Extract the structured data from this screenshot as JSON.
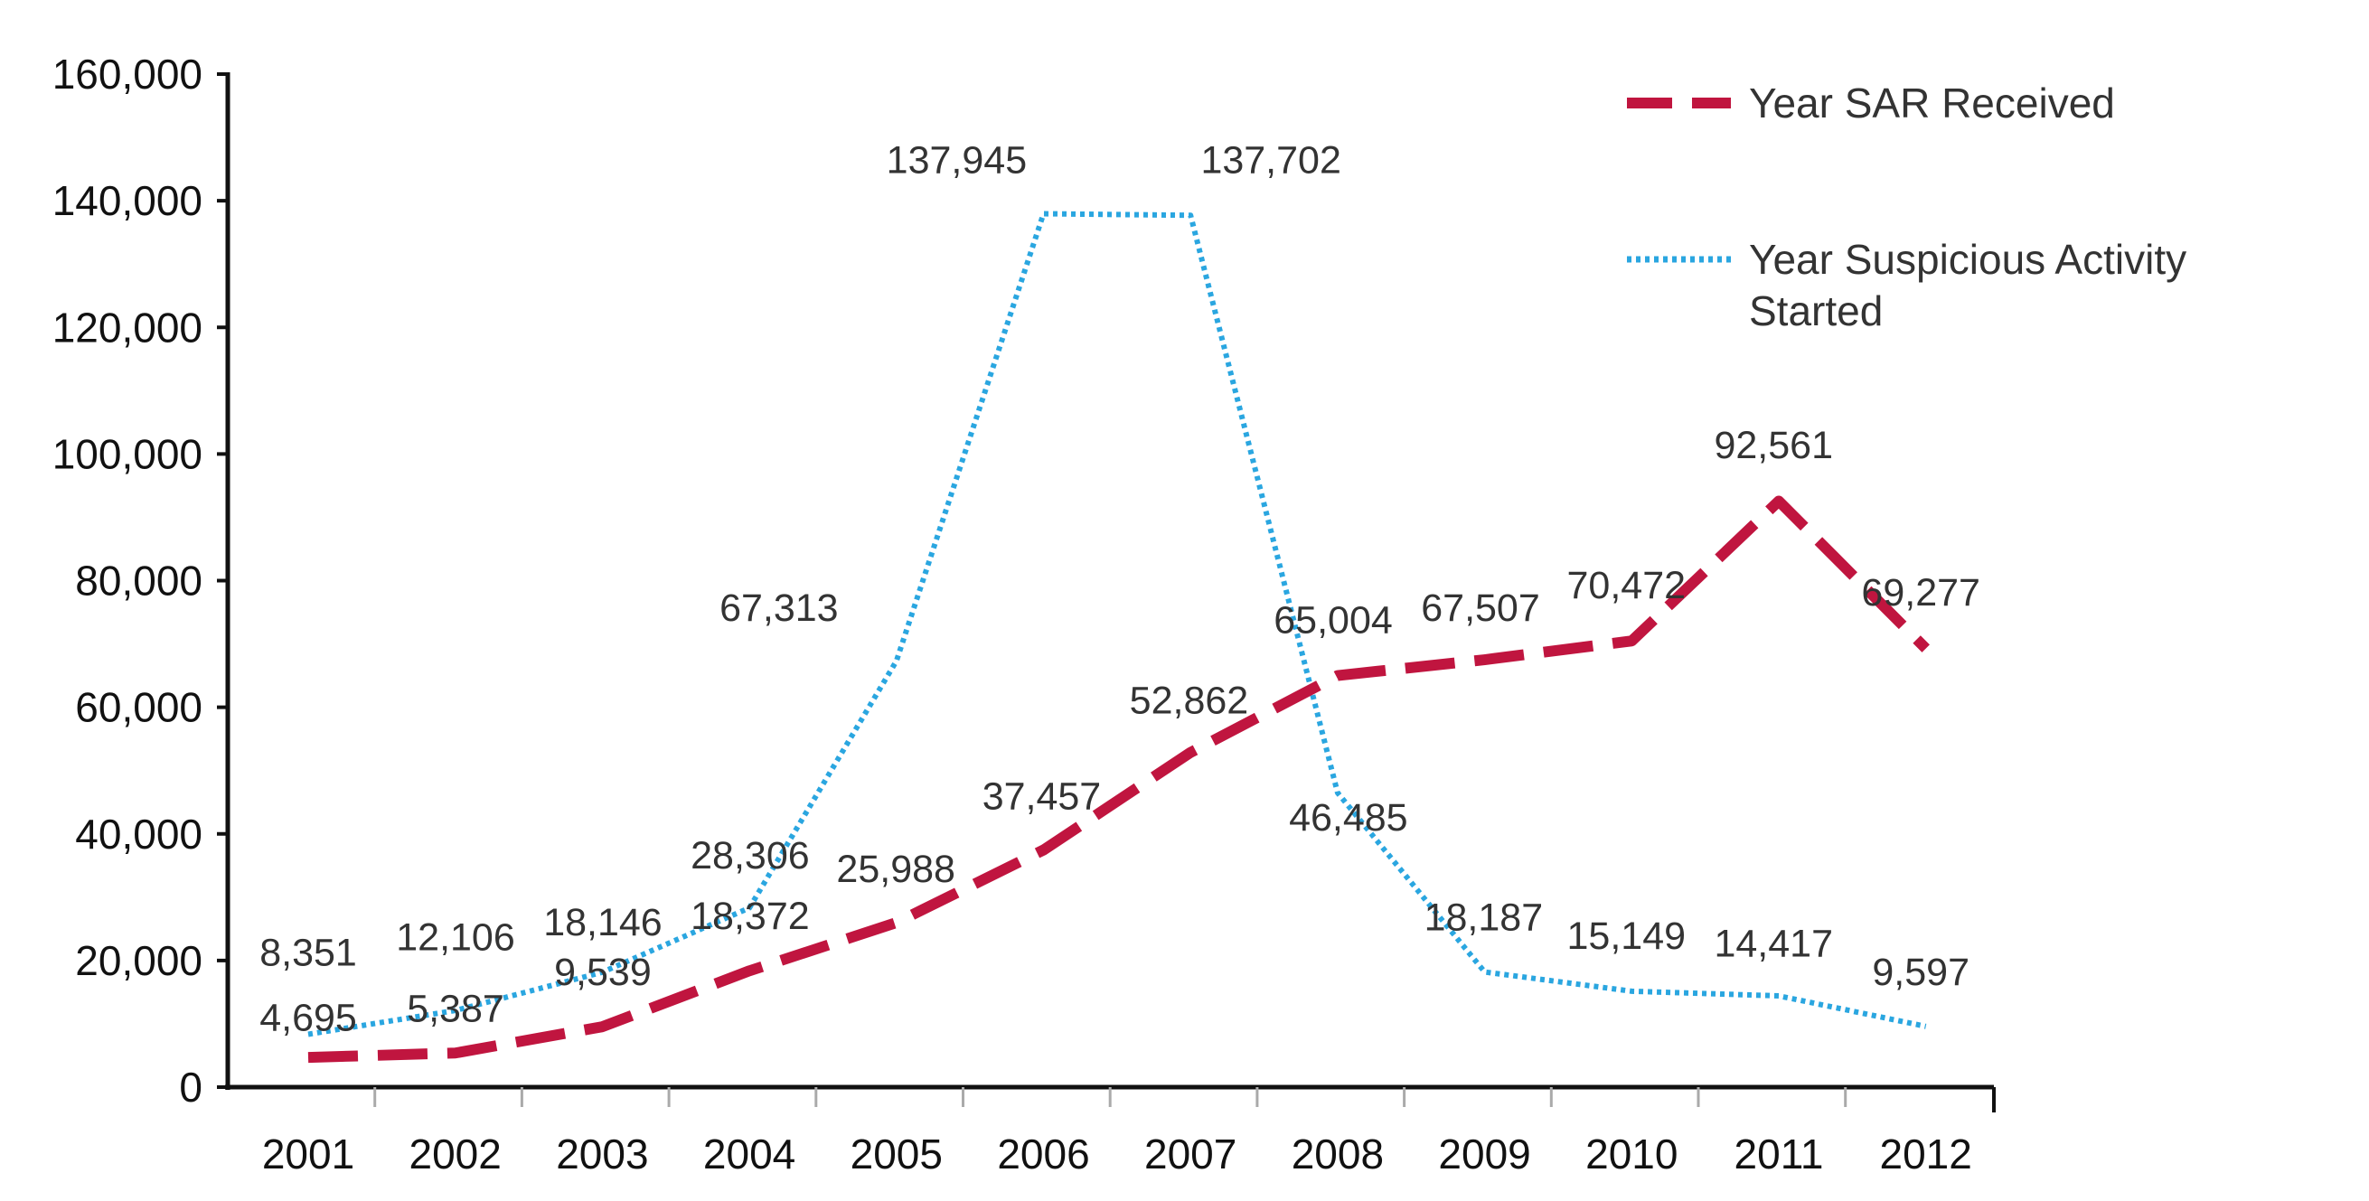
{
  "chart_data": {
    "type": "line",
    "title": "",
    "xlabel": "",
    "ylabel": "",
    "categories": [
      "2001",
      "2002",
      "2003",
      "2004",
      "2005",
      "2006",
      "2007",
      "2008",
      "2009",
      "2010",
      "2011",
      "2012"
    ],
    "ylim": [
      0,
      160000
    ],
    "yticks": [
      "0",
      "20,000",
      "40,000",
      "60,000",
      "80,000",
      "100,000",
      "120,000",
      "140,000",
      "160,000"
    ],
    "grid": false,
    "legend_position": "top-right",
    "series": [
      {
        "name": "Year SAR Received",
        "style": "dashed",
        "color": "#c0153f",
        "values": [
          4695,
          5387,
          9539,
          18372,
          25988,
          37457,
          52862,
          65004,
          67507,
          70472,
          92561,
          69277
        ],
        "labels": [
          "4,695",
          "5,387",
          "9,539",
          "18,372",
          "25,988",
          "37,457",
          "52,862",
          "65,004",
          "67,507",
          "70,472",
          "92,561",
          "69,277"
        ]
      },
      {
        "name": "Year Suspicious Activity Started",
        "name_line1": "Year Suspicious Activity",
        "name_line2": "Started",
        "style": "dotted",
        "color": "#2aa6e0",
        "values": [
          8351,
          12106,
          18146,
          28306,
          67313,
          137945,
          137702,
          46485,
          18187,
          15149,
          14417,
          9597
        ],
        "labels": [
          "8,351",
          "12,106",
          "18,146",
          "28,306",
          "67,313",
          "137,945",
          "137,702",
          "46,485",
          "18,187",
          "15,149",
          "14,417",
          "9,597"
        ]
      }
    ]
  }
}
